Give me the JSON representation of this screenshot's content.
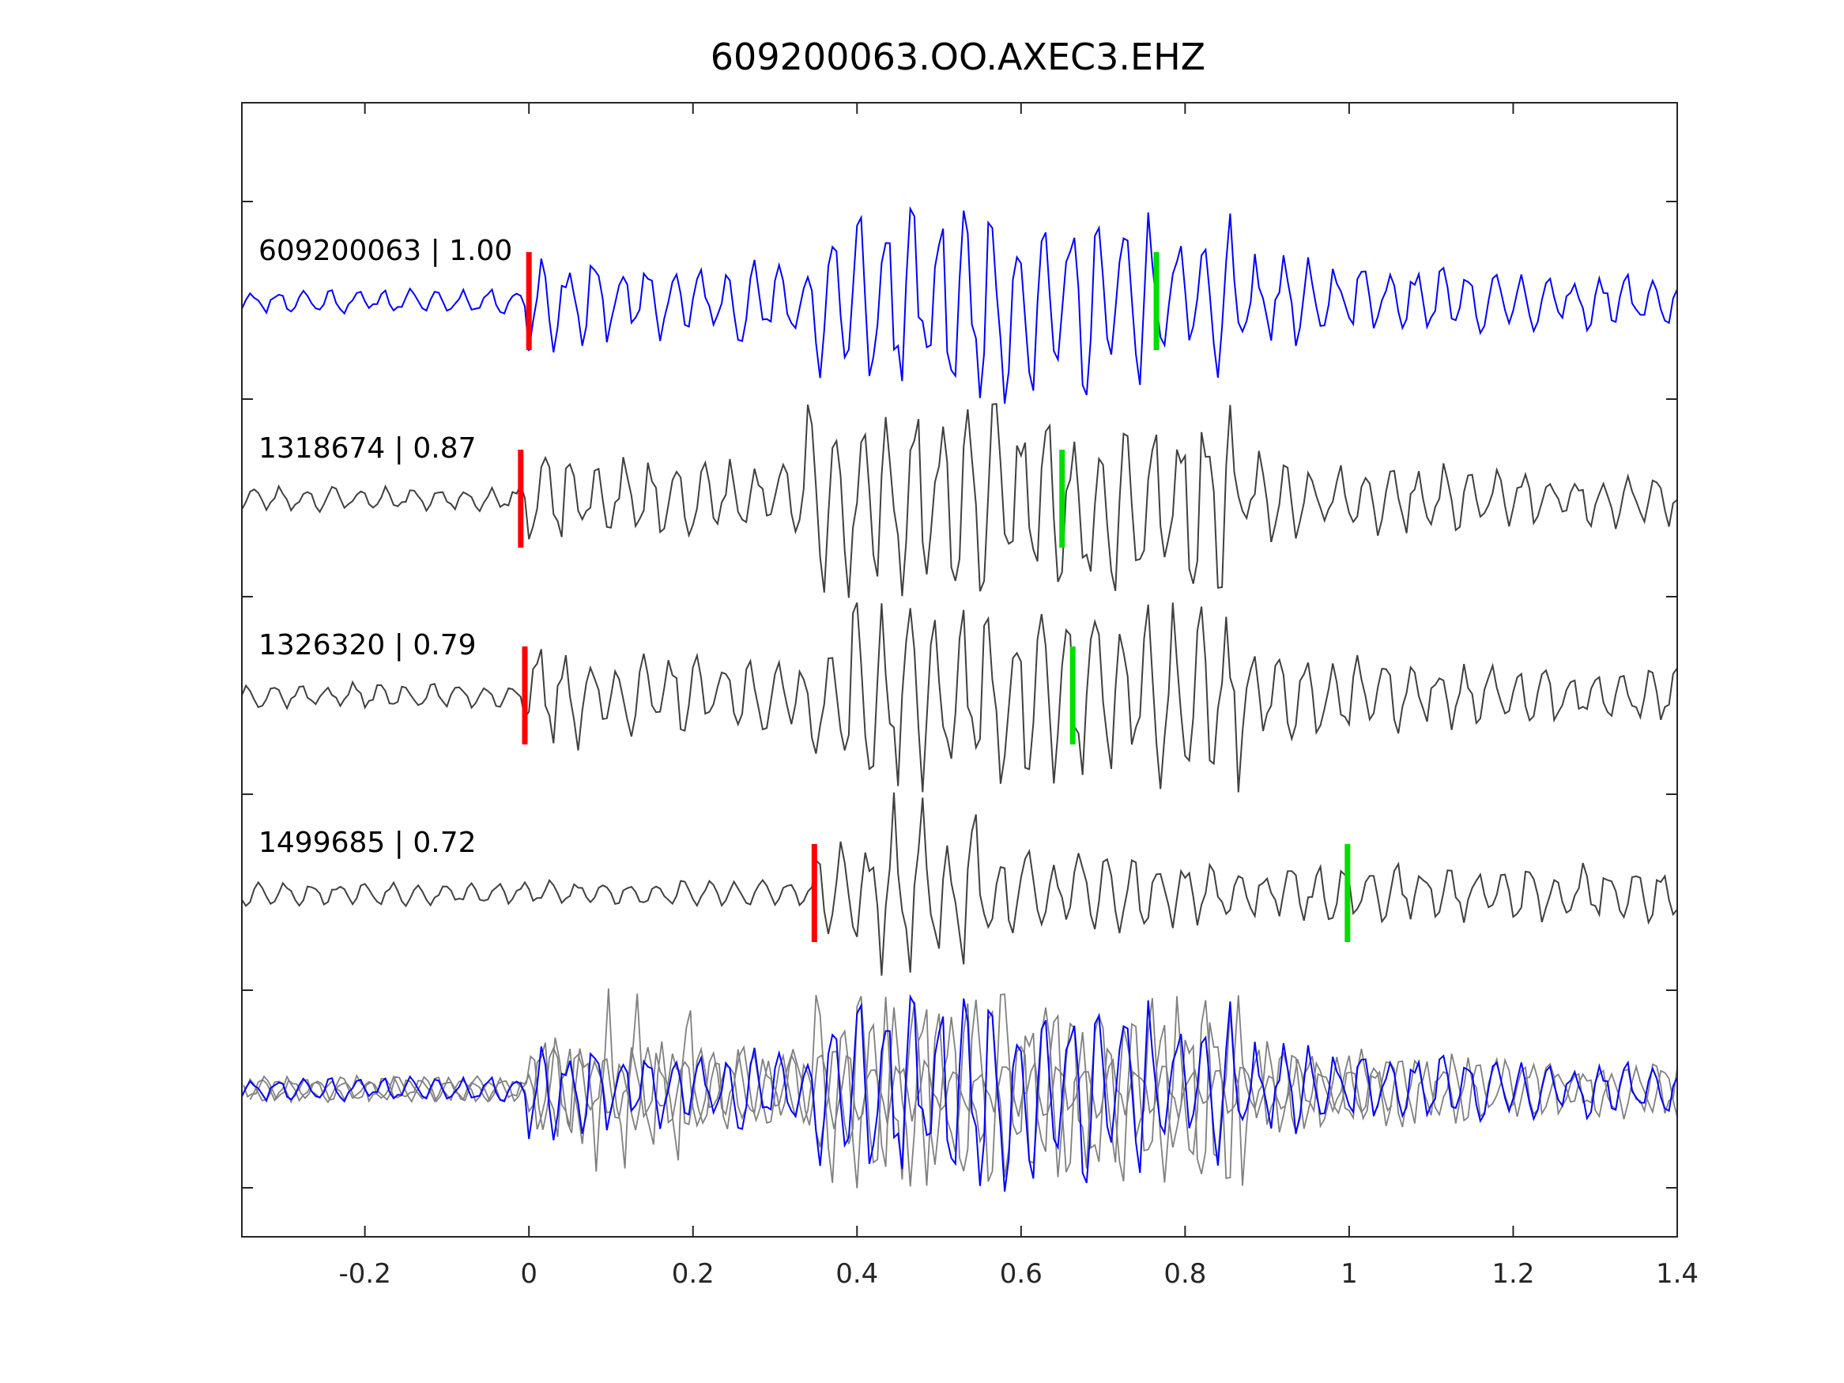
{
  "chart_data": {
    "type": "line",
    "title": "609200063.OO.AXEC3.EHZ",
    "xlabel": "",
    "ylabel": "",
    "xlim": [
      -0.35,
      1.4
    ],
    "x_ticks": [
      "-0.2",
      "0",
      "0.2",
      "0.4",
      "0.6",
      "0.8",
      "1",
      "1.2",
      "1.4"
    ],
    "x_tick_values": [
      -0.2,
      0,
      0.2,
      0.4,
      0.6,
      0.8,
      1,
      1.2,
      1.4
    ],
    "grid": false,
    "colors": {
      "template": "#0000ff",
      "match": "#404040",
      "stack_match": "#808080",
      "p_pick": "#ff0000",
      "s_pick": "#00dd00",
      "axes": "#262626"
    },
    "series": [
      {
        "label": "609200063 | 1.00",
        "p_pick": 0.0,
        "s_pick": 0.765,
        "onset": 0.0,
        "burst_start": 0.35,
        "burst_end": 0.86,
        "peak": 1.0,
        "seed": 11
      },
      {
        "label": "1318674 | 0.87",
        "p_pick": -0.01,
        "s_pick": 0.65,
        "onset": -0.01,
        "burst_start": 0.34,
        "burst_end": 0.86,
        "peak": 1.0,
        "seed": 23
      },
      {
        "label": "1326320 | 0.79",
        "p_pick": -0.005,
        "s_pick": 0.663,
        "onset": -0.005,
        "burst_start": 0.34,
        "burst_end": 0.87,
        "peak": 1.0,
        "seed": 37
      },
      {
        "label": "1499685 | 0.72",
        "p_pick": 0.348,
        "s_pick": 0.998,
        "onset": 0.348,
        "burst_start": 0.35,
        "burst_end": 0.55,
        "peak": 1.0,
        "seed": 53
      }
    ]
  }
}
